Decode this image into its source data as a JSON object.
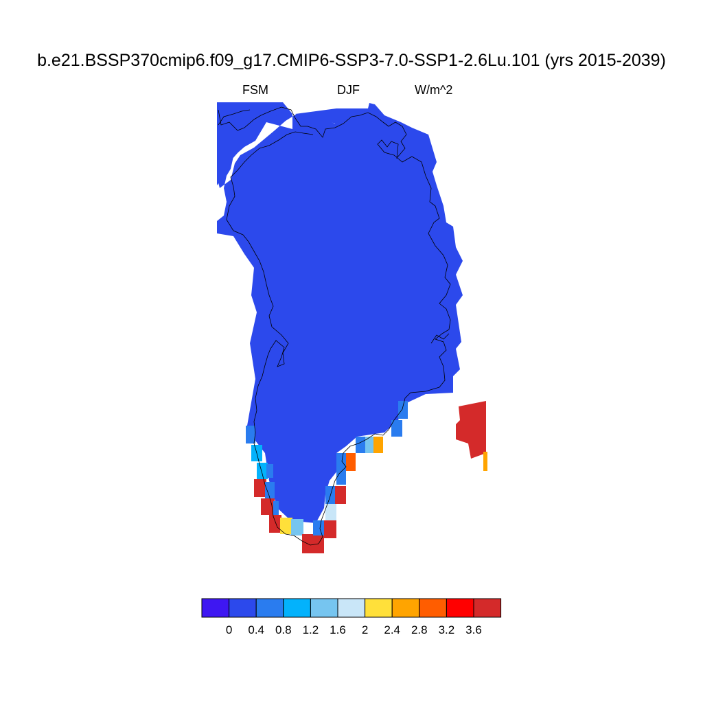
{
  "title": "b.e21.BSSP370cmip6.f09_g17.CMIP6-SSP3-7.0-SSP1-2.6Lu.101 (yrs 2015-2039)",
  "subtitle_left": "FSM",
  "subtitle_center": "DJF",
  "subtitle_right": "W/m^2",
  "colorbar": {
    "colors": [
      "#3e17f2",
      "#2c49ec",
      "#2a7cef",
      "#03b2fc",
      "#76c5f0",
      "#c9e6f8",
      "#ffe03a",
      "#ffa400",
      "#ff5d00",
      "#ff0000",
      "#d42a2a"
    ],
    "labels": [
      "0",
      "0.4",
      "0.8",
      "1.2",
      "1.6",
      "2",
      "2.4",
      "2.8",
      "3.2",
      "3.6"
    ]
  },
  "map": {
    "region": "Greenland",
    "background_value_class": "0 to 0.4",
    "high_value_region": "southern coastal margin"
  }
}
